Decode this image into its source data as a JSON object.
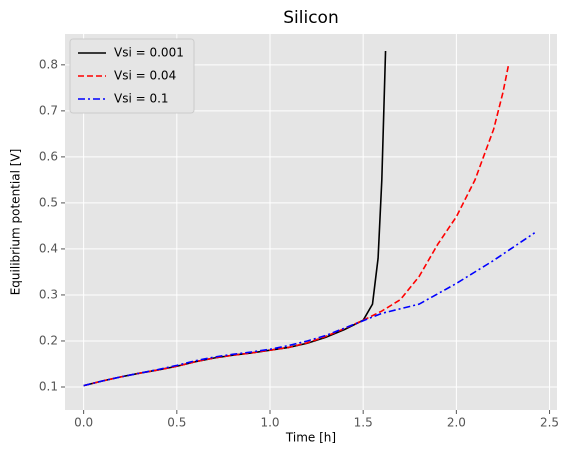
{
  "chart_data": {
    "type": "line",
    "title": "Silicon",
    "x_label": "Time [h]",
    "y_label": "Equilibrium potential [V]",
    "xlim": [
      -0.1,
      2.54
    ],
    "ylim": [
      0.05,
      0.867
    ],
    "xticks": [
      {
        "value": 0,
        "label": "0.0"
      },
      0.5,
      {
        "value": 1,
        "label": "1.0"
      },
      1.5,
      {
        "value": 2,
        "label": "2.0"
      },
      2.5
    ],
    "yticks": [
      0.1,
      0.2,
      0.3,
      0.4,
      0.5,
      0.6,
      0.7,
      0.8
    ],
    "grid": true,
    "legend": "upper left",
    "series": [
      {
        "name": "Vsi = 0.001",
        "color": "#000000",
        "dash": "solid",
        "x": [
          0,
          0.1,
          0.2,
          0.3,
          0.4,
          0.5,
          0.6,
          0.7,
          0.8,
          0.9,
          1.0,
          1.1,
          1.2,
          1.3,
          1.4,
          1.5,
          1.55,
          1.58,
          1.6,
          1.62
        ],
        "values": [
          0.103,
          0.113,
          0.122,
          0.13,
          0.137,
          0.145,
          0.155,
          0.163,
          0.169,
          0.174,
          0.18,
          0.186,
          0.195,
          0.208,
          0.225,
          0.245,
          0.28,
          0.38,
          0.55,
          0.83
        ]
      },
      {
        "name": "Vsi = 0.04",
        "color": "#ff0000",
        "dash": "dashed",
        "x": [
          0,
          0.1,
          0.2,
          0.3,
          0.4,
          0.5,
          0.6,
          0.7,
          0.8,
          0.9,
          1.0,
          1.1,
          1.2,
          1.3,
          1.4,
          1.5,
          1.6,
          1.7,
          1.8,
          1.9,
          2.0,
          2.1,
          2.2,
          2.25,
          2.28
        ],
        "values": [
          0.103,
          0.113,
          0.122,
          0.13,
          0.137,
          0.145,
          0.155,
          0.163,
          0.169,
          0.174,
          0.18,
          0.186,
          0.196,
          0.21,
          0.227,
          0.245,
          0.265,
          0.29,
          0.34,
          0.41,
          0.47,
          0.55,
          0.66,
          0.74,
          0.8
        ]
      },
      {
        "name": "Vsi = 0.1",
        "color": "#0000ff",
        "dash": "dashdot",
        "x": [
          0,
          0.1,
          0.2,
          0.3,
          0.4,
          0.5,
          0.6,
          0.7,
          0.8,
          0.9,
          1.0,
          1.1,
          1.2,
          1.3,
          1.4,
          1.5,
          1.6,
          1.8,
          2.0,
          2.2,
          2.42
        ],
        "values": [
          0.103,
          0.113,
          0.122,
          0.13,
          0.138,
          0.147,
          0.157,
          0.165,
          0.171,
          0.176,
          0.182,
          0.19,
          0.2,
          0.212,
          0.228,
          0.244,
          0.26,
          0.28,
          0.325,
          0.375,
          0.435
        ]
      }
    ]
  }
}
